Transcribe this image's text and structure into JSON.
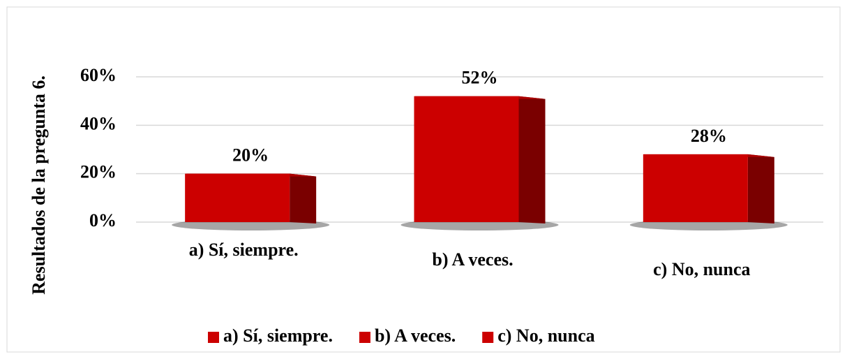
{
  "chart_data": {
    "type": "bar",
    "y_label": "Resultados de la pregunta 6.",
    "categories": [
      "a) Sí, siempre.",
      "b) A veces.",
      "c) No, nunca"
    ],
    "values": [
      20,
      52,
      28
    ],
    "value_labels": [
      "20%",
      "52%",
      "28%"
    ],
    "color": "#cc0000",
    "ylim": [
      0,
      60
    ],
    "yticks": [
      {
        "value": 0,
        "label": "0%"
      },
      {
        "value": 20,
        "label": "20%"
      },
      {
        "value": 40,
        "label": "40%"
      },
      {
        "value": 60,
        "label": "60%"
      }
    ],
    "grid": true,
    "legend": "bottom"
  }
}
